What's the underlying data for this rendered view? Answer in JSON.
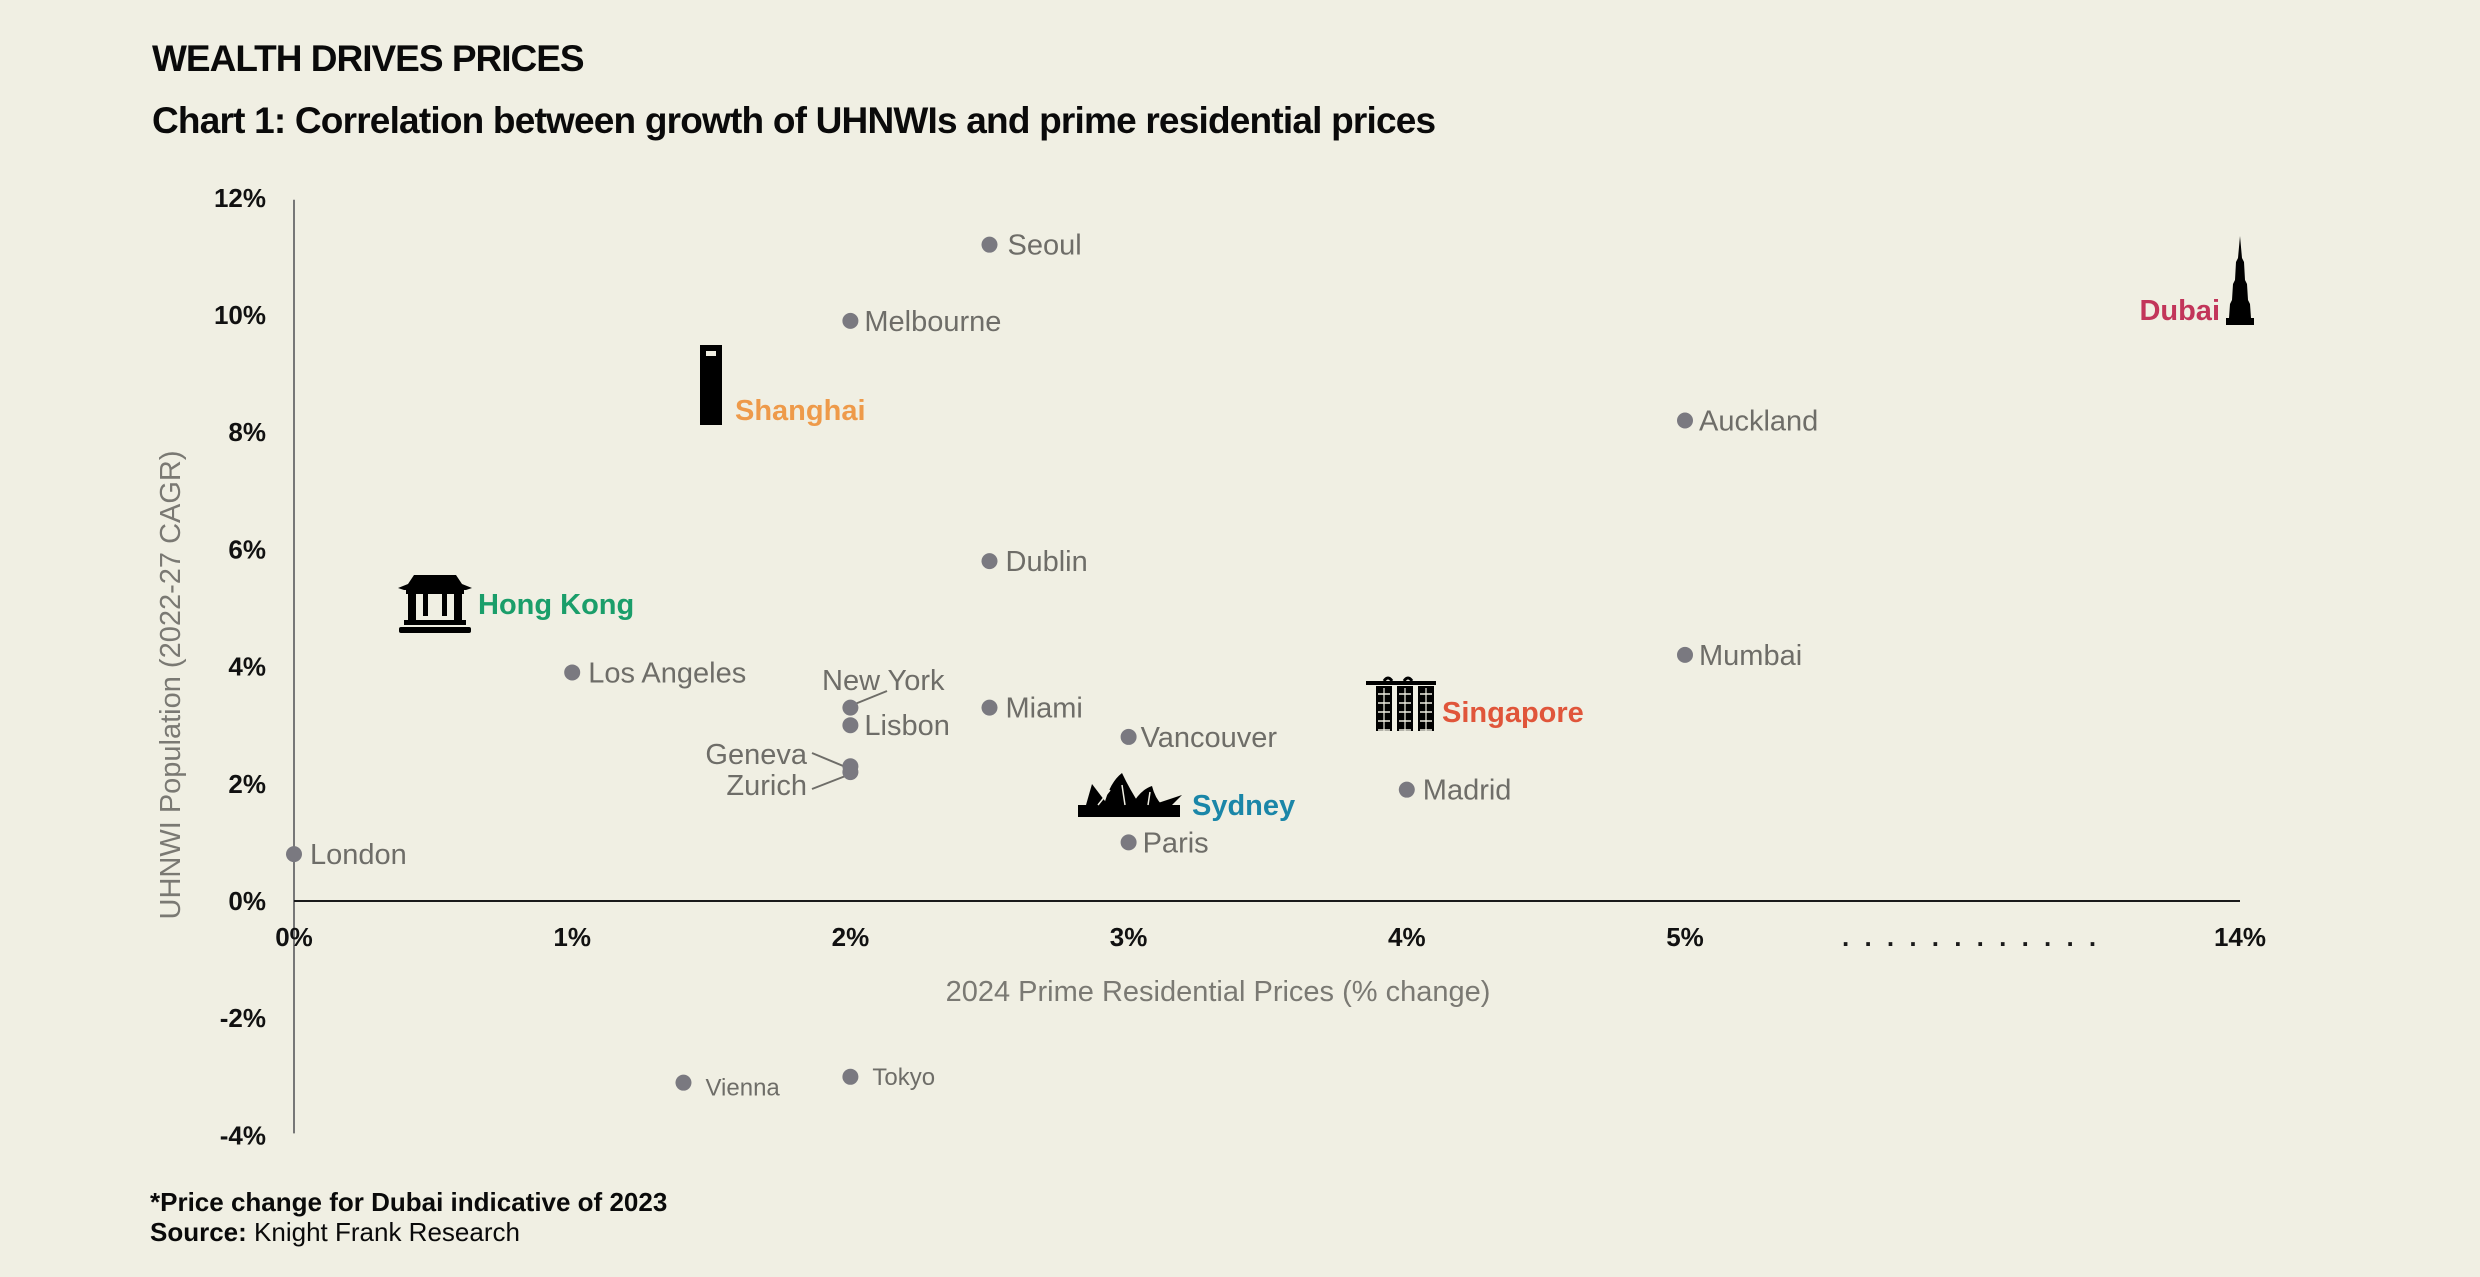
{
  "header": {
    "kicker": "WEALTH DRIVES PRICES",
    "title": "Chart 1: Correlation between growth of UHNWIs and prime residential prices"
  },
  "footer": {
    "footnote": "*Price change for Dubai indicative of 2023",
    "source_label": "Source:",
    "source_text": "Knight Frank Research"
  },
  "colors": {
    "background": "#f0efe3",
    "dot": "#7a7980",
    "label": "#6e6d68",
    "axis": "#1a1a1a",
    "hong_kong": "#1a9e6a",
    "shanghai": "#ee9a4a",
    "singapore": "#e0553a",
    "sydney": "#1a86a8",
    "dubai": "#c2355a"
  },
  "chart_data": {
    "type": "scatter",
    "title": "Chart 1: Correlation between growth of UHNWIs and prime residential prices",
    "xlabel": "2024 Prime Residential Prices (% change)",
    "ylabel": "UHNWI Population (2022-27 CAGR)",
    "xlim": [
      0,
      14
    ],
    "ylim": [
      -4,
      12
    ],
    "x_axis_break": {
      "from": 5,
      "to": 14,
      "marker": ". . . . . . . . . . . ."
    },
    "x_ticks": [
      {
        "value": 0,
        "label": "0%"
      },
      {
        "value": 1,
        "label": "1%"
      },
      {
        "value": 2,
        "label": "2%"
      },
      {
        "value": 3,
        "label": "3%"
      },
      {
        "value": 4,
        "label": "4%"
      },
      {
        "value": 5,
        "label": "5%"
      },
      {
        "value": 14,
        "label": "14%"
      }
    ],
    "y_ticks": [
      {
        "value": 12,
        "label": "12%"
      },
      {
        "value": 10,
        "label": "10%"
      },
      {
        "value": 8,
        "label": "8%"
      },
      {
        "value": 6,
        "label": "6%"
      },
      {
        "value": 4,
        "label": "4%"
      },
      {
        "value": 2,
        "label": "2%"
      },
      {
        "value": 0,
        "label": "0%"
      },
      {
        "value": -2,
        "label": "-2%"
      },
      {
        "value": -4,
        "label": "-4%"
      }
    ],
    "grid": false,
    "legend": "none",
    "points": [
      {
        "name": "Seoul",
        "x": 2.5,
        "y": 11.2,
        "marker": "dot"
      },
      {
        "name": "Melbourne",
        "x": 2.0,
        "y": 9.9,
        "marker": "dot"
      },
      {
        "name": "Shanghai",
        "x": 1.5,
        "y": 8.2,
        "marker": "icon-tower",
        "highlight": "shanghai"
      },
      {
        "name": "Auckland",
        "x": 5.0,
        "y": 8.2,
        "marker": "dot"
      },
      {
        "name": "Dubai",
        "x": 14.0,
        "y": 10.0,
        "marker": "icon-burj",
        "highlight": "dubai",
        "note": "Price change indicative of 2023"
      },
      {
        "name": "Dublin",
        "x": 2.5,
        "y": 5.8,
        "marker": "dot"
      },
      {
        "name": "Hong Kong",
        "x": 0.5,
        "y": 5.1,
        "marker": "icon-temple",
        "highlight": "hong_kong"
      },
      {
        "name": "Los Angeles",
        "x": 1.0,
        "y": 3.9,
        "marker": "dot"
      },
      {
        "name": "Mumbai",
        "x": 5.0,
        "y": 4.2,
        "marker": "dot"
      },
      {
        "name": "New York",
        "x": 2.0,
        "y": 3.3,
        "marker": "dot"
      },
      {
        "name": "Lisbon",
        "x": 2.0,
        "y": 3.0,
        "marker": "dot"
      },
      {
        "name": "Miami",
        "x": 2.5,
        "y": 3.3,
        "marker": "dot"
      },
      {
        "name": "Singapore",
        "x": 4.0,
        "y": 3.3,
        "marker": "icon-mbs",
        "highlight": "singapore"
      },
      {
        "name": "Vancouver",
        "x": 3.0,
        "y": 2.8,
        "marker": "dot"
      },
      {
        "name": "Geneva",
        "x": 2.0,
        "y": 2.3,
        "marker": "dot"
      },
      {
        "name": "Zurich",
        "x": 2.0,
        "y": 2.2,
        "marker": "dot"
      },
      {
        "name": "Madrid",
        "x": 4.0,
        "y": 1.9,
        "marker": "dot"
      },
      {
        "name": "Sydney",
        "x": 3.0,
        "y": 1.7,
        "marker": "icon-opera",
        "highlight": "sydney"
      },
      {
        "name": "Paris",
        "x": 3.0,
        "y": 1.0,
        "marker": "dot"
      },
      {
        "name": "London",
        "x": 0.0,
        "y": 0.8,
        "marker": "dot"
      },
      {
        "name": "Vienna",
        "x": 1.4,
        "y": -3.1,
        "marker": "dot"
      },
      {
        "name": "Tokyo",
        "x": 2.0,
        "y": -3.0,
        "marker": "dot"
      }
    ]
  }
}
